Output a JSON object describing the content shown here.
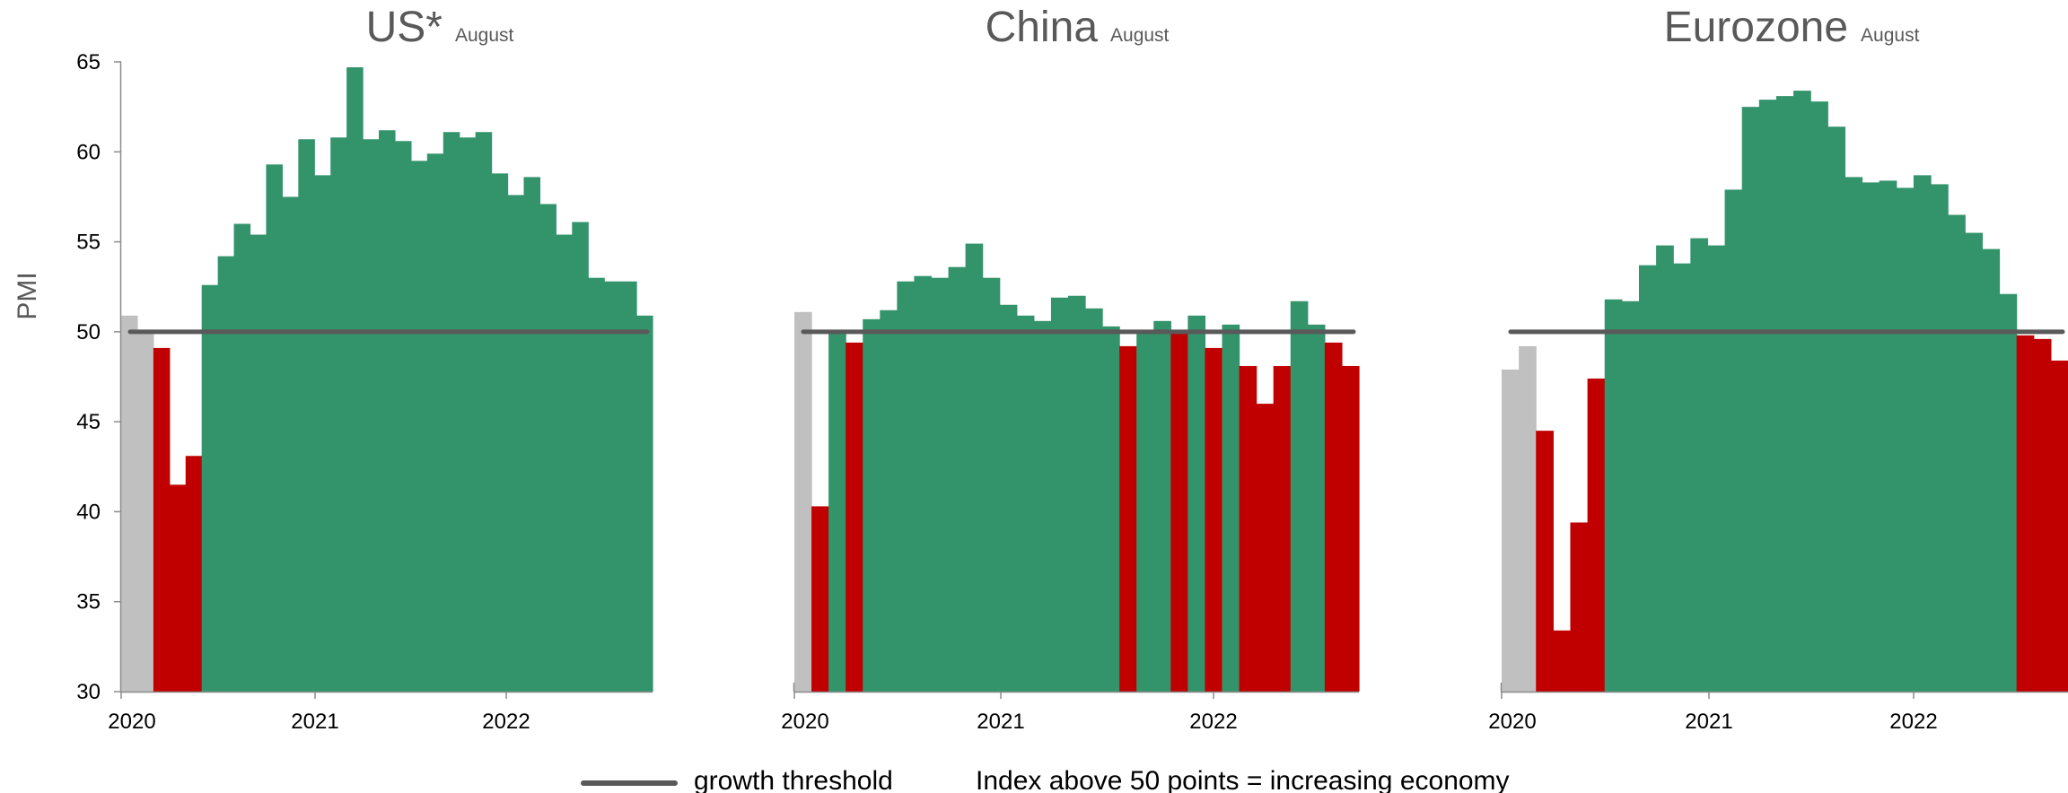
{
  "y_axis_label": "PMI",
  "y_ticks": [
    30,
    35,
    40,
    45,
    50,
    55,
    60,
    65
  ],
  "x_ticks": [
    "2020",
    "2021",
    "2022"
  ],
  "legend": {
    "line_label": "growth threshold",
    "note": "Index above 50 points = increasing economy"
  },
  "colors": {
    "above_threshold": "#33946c",
    "below_threshold": "#c00000",
    "pre_pandemic": "#c0c0c0",
    "threshold_line": "#595959",
    "title_text": "#595959"
  },
  "chart_data": [
    {
      "type": "bar",
      "title": "US*",
      "subtitle": "August",
      "ylabel": "PMI",
      "ylim": [
        30,
        65
      ],
      "threshold": 50,
      "period": "2020-01 to 2022-08 (monthly)",
      "gray_months": 2,
      "values": [
        50.9,
        50.1,
        49.1,
        41.5,
        43.1,
        52.6,
        54.2,
        56.0,
        55.4,
        59.3,
        57.5,
        60.7,
        58.7,
        60.8,
        64.7,
        60.7,
        61.2,
        60.6,
        59.5,
        59.9,
        61.1,
        60.8,
        61.1,
        58.8,
        57.6,
        58.6,
        57.1,
        55.4,
        56.1,
        53.0,
        52.8,
        52.8,
        50.9
      ]
    },
    {
      "type": "bar",
      "title": "China",
      "subtitle": "August",
      "ylim": [
        30,
        65
      ],
      "threshold": 50,
      "period": "2020-01 to 2022-08 (monthly)",
      "gray_months": 1,
      "values": [
        51.1,
        40.3,
        50.1,
        49.4,
        50.7,
        51.2,
        52.8,
        53.1,
        53.0,
        53.6,
        54.9,
        53.0,
        51.5,
        50.9,
        50.6,
        51.9,
        52.0,
        51.3,
        50.3,
        49.2,
        50.0,
        50.6,
        49.9,
        50.9,
        49.1,
        50.4,
        48.1,
        46.0,
        48.1,
        51.7,
        50.4,
        49.4,
        48.1
      ]
    },
    {
      "type": "bar",
      "title": "Eurozone",
      "subtitle": "August",
      "ylim": [
        30,
        65
      ],
      "threshold": 50,
      "period": "2020-01 to 2022-08 (monthly)",
      "gray_months": 2,
      "values": [
        47.9,
        49.2,
        44.5,
        33.4,
        39.4,
        47.4,
        51.8,
        51.7,
        53.7,
        54.8,
        53.8,
        55.2,
        54.8,
        57.9,
        62.5,
        62.9,
        63.1,
        63.4,
        62.8,
        61.4,
        58.6,
        58.3,
        58.4,
        58.0,
        58.7,
        58.2,
        56.5,
        55.5,
        54.6,
        52.1,
        49.8,
        49.6,
        48.4
      ]
    }
  ]
}
